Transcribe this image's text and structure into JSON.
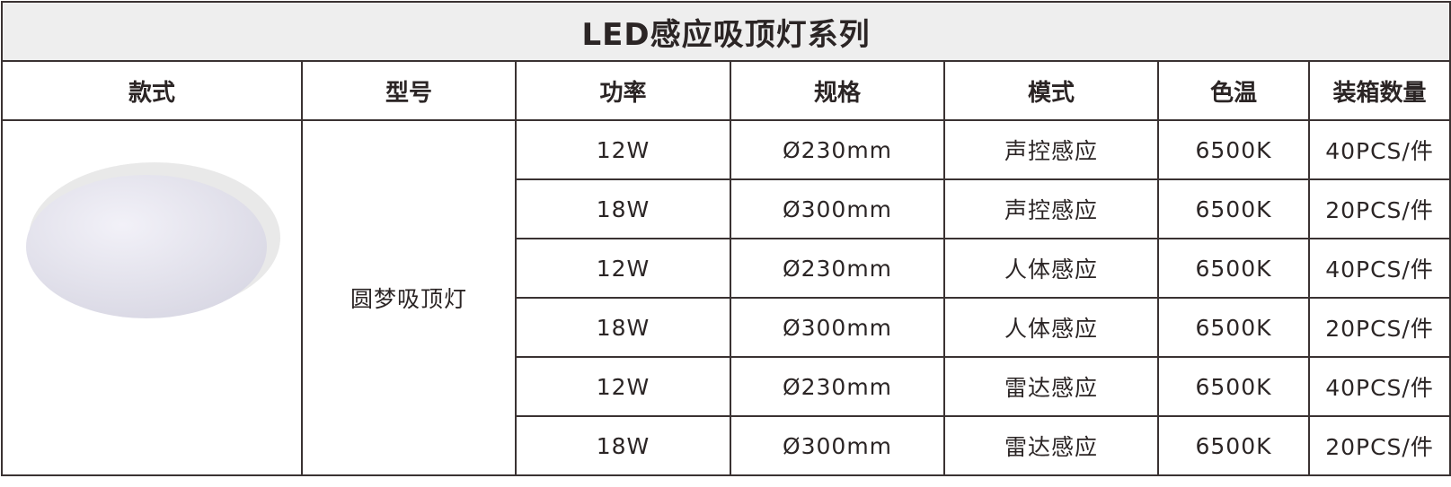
{
  "title": "LED感应吸顶灯系列",
  "headers": [
    "款式",
    "型号",
    "功率",
    "规格",
    "模式",
    "色温",
    "装箱数量"
  ],
  "model": "圆梦吸顶灯",
  "product_image": "round-ceiling-lamp",
  "rows": [
    {
      "power": "12W",
      "spec": "Ø230mm",
      "mode": "声控感应",
      "cct": "6500K",
      "packing": "40PCS/件"
    },
    {
      "power": "18W",
      "spec": "Ø300mm",
      "mode": "声控感应",
      "cct": "6500K",
      "packing": "20PCS/件"
    },
    {
      "power": "12W",
      "spec": "Ø230mm",
      "mode": "人体感应",
      "cct": "6500K",
      "packing": "40PCS/件"
    },
    {
      "power": "18W",
      "spec": "Ø300mm",
      "mode": "人体感应",
      "cct": "6500K",
      "packing": "20PCS/件"
    },
    {
      "power": "12W",
      "spec": "Ø230mm",
      "mode": "雷达感应",
      "cct": "6500K",
      "packing": "40PCS/件"
    },
    {
      "power": "18W",
      "spec": "Ø300mm",
      "mode": "雷达感应",
      "cct": "6500K",
      "packing": "20PCS/件"
    }
  ]
}
